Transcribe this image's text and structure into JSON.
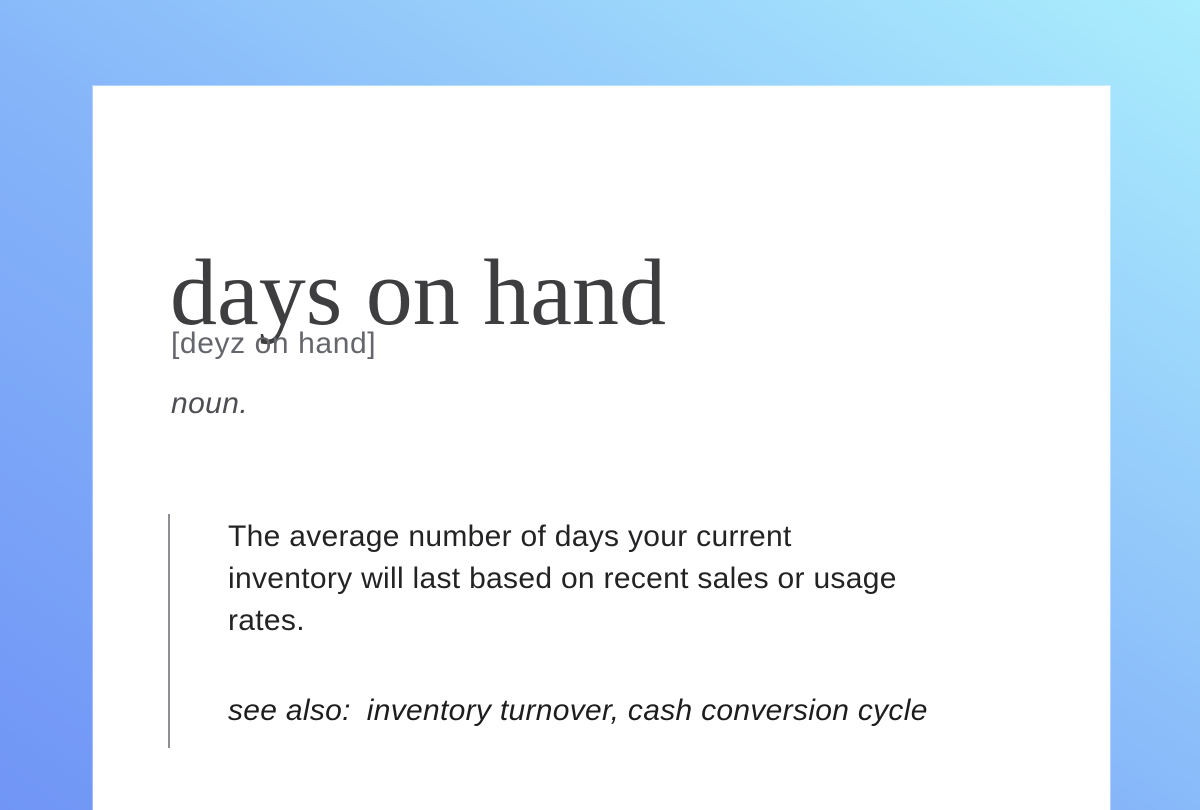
{
  "card": {
    "title": "days on hand",
    "pronunciation": "[deyz on hand]",
    "part_of_speech": "noun.",
    "definition_lines": [
      "The average number of days your current",
      "inventory will last based on recent sales or usage",
      "rates."
    ],
    "see_also_label": "see also:",
    "see_also_terms": "inventory turnover, cash conversion cycle"
  },
  "colors": {
    "background_gradient_start": "#7095f6",
    "background_gradient_mid": "#85b4f9",
    "background_gradient_end": "#abeefd",
    "card_background": "#ffffff",
    "title_color": "#3e3e40",
    "pronunciation_color": "#64666b",
    "part_of_speech_color": "#4d4e52",
    "definition_color": "#232325",
    "see_also_color": "#1d1d1f",
    "rule_color": "#8d8f93"
  }
}
